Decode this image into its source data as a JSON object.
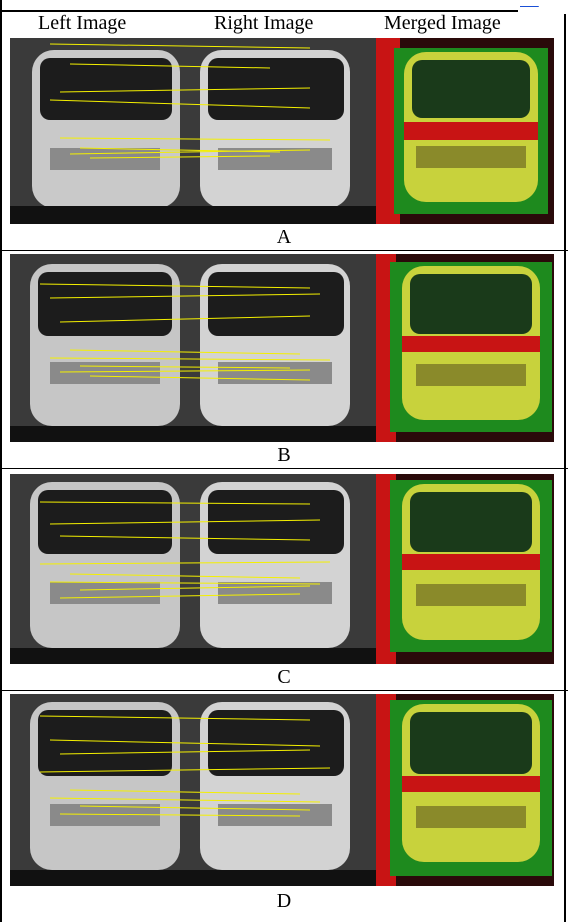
{
  "header": {
    "left": "Left Image",
    "right": "Right Image",
    "merged": "Merged Image"
  },
  "panels": [
    {
      "label": "A"
    },
    {
      "label": "B"
    },
    {
      "label": "C"
    },
    {
      "label": "D"
    }
  ],
  "colors": {
    "match_line": "#f4f000",
    "merged_red": "#c81414",
    "merged_green": "#1ec81e",
    "merged_yellow": "#c8d23c",
    "marker_blue": "#3a3ad0"
  }
}
